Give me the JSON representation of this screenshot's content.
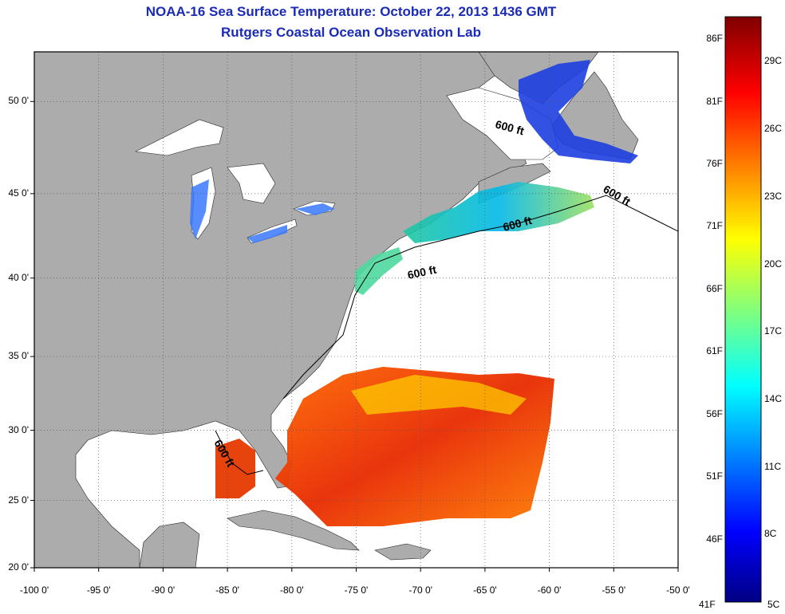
{
  "title": "NOAA-16 Sea Surface Temperature:  October 22, 2013 1436 GMT",
  "subtitle": "Rutgers Coastal Ocean Observation Lab",
  "map": {
    "lat_labels": [
      {
        "value": 50,
        "text": "50 0'"
      },
      {
        "value": 45,
        "text": "45 0'"
      },
      {
        "value": 40,
        "text": "40 0'"
      },
      {
        "value": 35,
        "text": "35 0'"
      },
      {
        "value": 30,
        "text": "30 0'"
      },
      {
        "value": 25,
        "text": "25 0'"
      },
      {
        "value": 20,
        "text": "20 0'"
      }
    ],
    "lon_labels": [
      {
        "value": -100,
        "text": "-100 0'"
      },
      {
        "value": -95,
        "text": "-95 0'"
      },
      {
        "value": -90,
        "text": "-90 0'"
      },
      {
        "value": -85,
        "text": "-85 0'"
      },
      {
        "value": -80,
        "text": "-80 0'"
      },
      {
        "value": -75,
        "text": "-75 0'"
      },
      {
        "value": -70,
        "text": "-70 0'"
      },
      {
        "value": -65,
        "text": "-65 0'"
      },
      {
        "value": -60,
        "text": "-60 0'"
      },
      {
        "value": -55,
        "text": "-55 0'"
      },
      {
        "value": -50,
        "text": "-50 0'"
      }
    ],
    "contour_label": "600 ft",
    "colors": {
      "land": "#acacac",
      "ocean": "#ffffff",
      "grid": "#555555",
      "title": "#1a2bb5"
    }
  },
  "colorbar": {
    "fahrenheit_labels": [
      "86F",
      "81F",
      "76F",
      "71F",
      "66F",
      "61F",
      "56F",
      "51F",
      "46F"
    ],
    "celsius_labels": [
      "29C",
      "26C",
      "23C",
      "20C",
      "17C",
      "14C",
      "11C",
      "8C"
    ],
    "bottom_f": "41F",
    "bottom_c": "5C",
    "range_c": [
      5,
      31
    ]
  }
}
